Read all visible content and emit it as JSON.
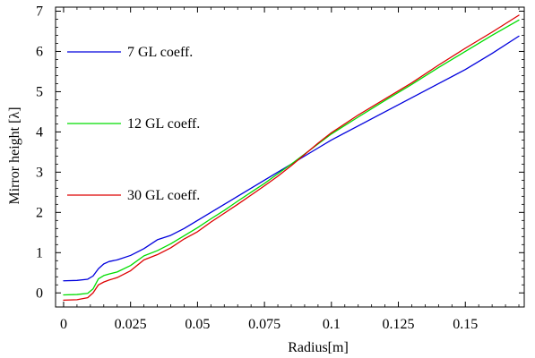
{
  "chart_data": {
    "type": "line",
    "title": "",
    "xlabel": "Radius[m]",
    "ylabel": "Mirror height [λ]",
    "xlim": [
      -0.003,
      0.172
    ],
    "ylim": [
      -0.35,
      7.1
    ],
    "x_ticks": [
      0,
      0.025,
      0.05,
      0.075,
      0.1,
      0.125,
      0.15
    ],
    "x_tick_labels": [
      "0",
      "0.025",
      "0.05",
      "0.075",
      "0.1",
      "0.125",
      "0.15"
    ],
    "y_ticks": [
      0,
      1,
      2,
      3,
      4,
      5,
      6,
      7
    ],
    "y_tick_labels": [
      "0",
      "1",
      "2",
      "3",
      "4",
      "5",
      "6",
      "7"
    ],
    "grid": false,
    "legend_position": "left",
    "series": [
      {
        "name": "7 GL coeff.",
        "color": "#0000dd",
        "x": [
          0,
          0.005,
          0.009,
          0.011,
          0.013,
          0.015,
          0.017,
          0.02,
          0.025,
          0.03,
          0.035,
          0.04,
          0.045,
          0.05,
          0.055,
          0.06,
          0.065,
          0.07,
          0.075,
          0.08,
          0.085,
          0.09,
          0.095,
          0.1,
          0.11,
          0.12,
          0.13,
          0.14,
          0.15,
          0.16,
          0.17
        ],
        "y": [
          0.3,
          0.31,
          0.34,
          0.42,
          0.6,
          0.72,
          0.78,
          0.82,
          0.93,
          1.1,
          1.32,
          1.43,
          1.6,
          1.8,
          2.0,
          2.2,
          2.4,
          2.6,
          2.8,
          3.0,
          3.2,
          3.4,
          3.6,
          3.8,
          4.15,
          4.5,
          4.85,
          5.2,
          5.55,
          5.95,
          6.38
        ]
      },
      {
        "name": "12 GL coeff.",
        "color": "#00dd00",
        "x": [
          0,
          0.005,
          0.009,
          0.011,
          0.013,
          0.015,
          0.017,
          0.02,
          0.025,
          0.03,
          0.035,
          0.04,
          0.045,
          0.05,
          0.055,
          0.06,
          0.065,
          0.07,
          0.075,
          0.08,
          0.085,
          0.09,
          0.095,
          0.1,
          0.11,
          0.12,
          0.13,
          0.14,
          0.15,
          0.16,
          0.17
        ],
        "y": [
          -0.05,
          -0.04,
          -0.01,
          0.1,
          0.35,
          0.43,
          0.47,
          0.52,
          0.68,
          0.92,
          1.05,
          1.22,
          1.42,
          1.62,
          1.84,
          2.05,
          2.28,
          2.5,
          2.72,
          2.96,
          3.2,
          3.45,
          3.7,
          3.95,
          4.37,
          4.78,
          5.18,
          5.6,
          6.0,
          6.4,
          6.78
        ]
      },
      {
        "name": "30 GL coeff.",
        "color": "#dd0000",
        "x": [
          0,
          0.005,
          0.009,
          0.011,
          0.013,
          0.015,
          0.017,
          0.02,
          0.025,
          0.03,
          0.035,
          0.04,
          0.045,
          0.05,
          0.055,
          0.06,
          0.065,
          0.07,
          0.075,
          0.08,
          0.085,
          0.09,
          0.095,
          0.1,
          0.11,
          0.12,
          0.13,
          0.14,
          0.15,
          0.16,
          0.17
        ],
        "y": [
          -0.18,
          -0.17,
          -0.12,
          0.0,
          0.2,
          0.27,
          0.32,
          0.38,
          0.55,
          0.82,
          0.95,
          1.12,
          1.34,
          1.52,
          1.76,
          1.98,
          2.2,
          2.43,
          2.66,
          2.9,
          3.16,
          3.44,
          3.72,
          3.98,
          4.42,
          4.82,
          5.22,
          5.66,
          6.08,
          6.48,
          6.9
        ]
      }
    ]
  }
}
